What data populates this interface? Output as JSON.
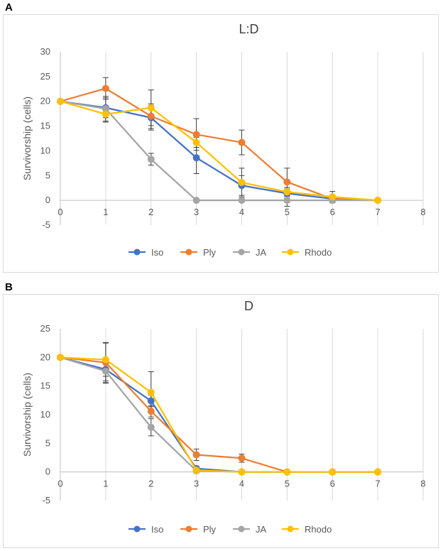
{
  "colors": {
    "Iso": "#4472c4",
    "Ply": "#ed7d31",
    "JA": "#a5a5a5",
    "Rhodo": "#ffc000",
    "error_bar": "#404040",
    "axis": "#bfbfbf",
    "grid": "#d9d9d9"
  },
  "panels": [
    {
      "letter": "A"
    },
    {
      "letter": "B"
    }
  ],
  "chart_data": [
    {
      "type": "line",
      "title": "L:D",
      "xlabel": "",
      "ylabel": "Survivorship (cells)",
      "xlim": [
        0,
        8
      ],
      "ylim": [
        -5,
        30
      ],
      "xticks": [
        0,
        1,
        2,
        3,
        4,
        5,
        6,
        7,
        8
      ],
      "yticks": [
        -5,
        0,
        5,
        10,
        15,
        20,
        25,
        30
      ],
      "grid": "vertical",
      "legend": "bottom",
      "x": [
        0,
        1,
        2,
        3,
        4,
        5,
        6,
        7
      ],
      "series": [
        {
          "name": "Iso",
          "values": [
            20,
            18.7,
            16.7,
            8.6,
            3.0,
            1.4,
            0.3,
            0
          ],
          "errors": [
            0,
            2.0,
            2.5,
            3.2,
            2.0,
            0.9,
            0.3,
            0
          ]
        },
        {
          "name": "Ply",
          "values": [
            20,
            22.6,
            17.0,
            13.3,
            11.7,
            3.7,
            0.3,
            0
          ],
          "errors": [
            0,
            2.2,
            2.5,
            3.2,
            2.5,
            2.8,
            0.3,
            0
          ]
        },
        {
          "name": "JA",
          "values": [
            20,
            18.5,
            8.3,
            0,
            0,
            0,
            0,
            0
          ],
          "errors": [
            0,
            2.5,
            1.2,
            0,
            0,
            1.2,
            0.5,
            0
          ]
        },
        {
          "name": "Rhodo",
          "values": [
            20,
            17.4,
            18.7,
            11.7,
            3.6,
            1.7,
            0.7,
            0
          ],
          "errors": [
            0,
            1.6,
            3.6,
            1.0,
            2.9,
            0.9,
            1.1,
            0
          ]
        }
      ]
    },
    {
      "type": "line",
      "title": "D",
      "xlabel": "",
      "ylabel": "Survivorship (cells)",
      "xlim": [
        0,
        8
      ],
      "ylim": [
        -5,
        25
      ],
      "xticks": [
        0,
        1,
        2,
        3,
        4,
        5,
        6,
        7,
        8
      ],
      "yticks": [
        -5,
        0,
        5,
        10,
        15,
        20,
        25
      ],
      "grid": "vertical",
      "legend": "bottom",
      "x": [
        0,
        1,
        2,
        3,
        4,
        5,
        6,
        7
      ],
      "series": [
        {
          "name": "Iso",
          "values": [
            20,
            17.9,
            12.4,
            0.6,
            0,
            0,
            0,
            0
          ],
          "errors": [
            0,
            2.0,
            1.0,
            0.4,
            0,
            0,
            0,
            0
          ]
        },
        {
          "name": "Ply",
          "values": [
            20,
            19.1,
            10.6,
            3.0,
            2.4,
            0,
            0,
            0
          ],
          "errors": [
            0,
            3.5,
            1.0,
            1.0,
            0.7,
            0,
            0,
            0
          ]
        },
        {
          "name": "JA",
          "values": [
            20,
            17.6,
            7.8,
            0.2,
            0,
            0,
            0,
            0
          ],
          "errors": [
            0,
            2.1,
            1.5,
            0.4,
            0,
            0,
            0,
            0
          ]
        },
        {
          "name": "Rhodo",
          "values": [
            20,
            19.6,
            13.9,
            0.3,
            0,
            0,
            0,
            0
          ],
          "errors": [
            0,
            2.9,
            3.6,
            0.3,
            0,
            0,
            0,
            0
          ]
        }
      ]
    }
  ]
}
